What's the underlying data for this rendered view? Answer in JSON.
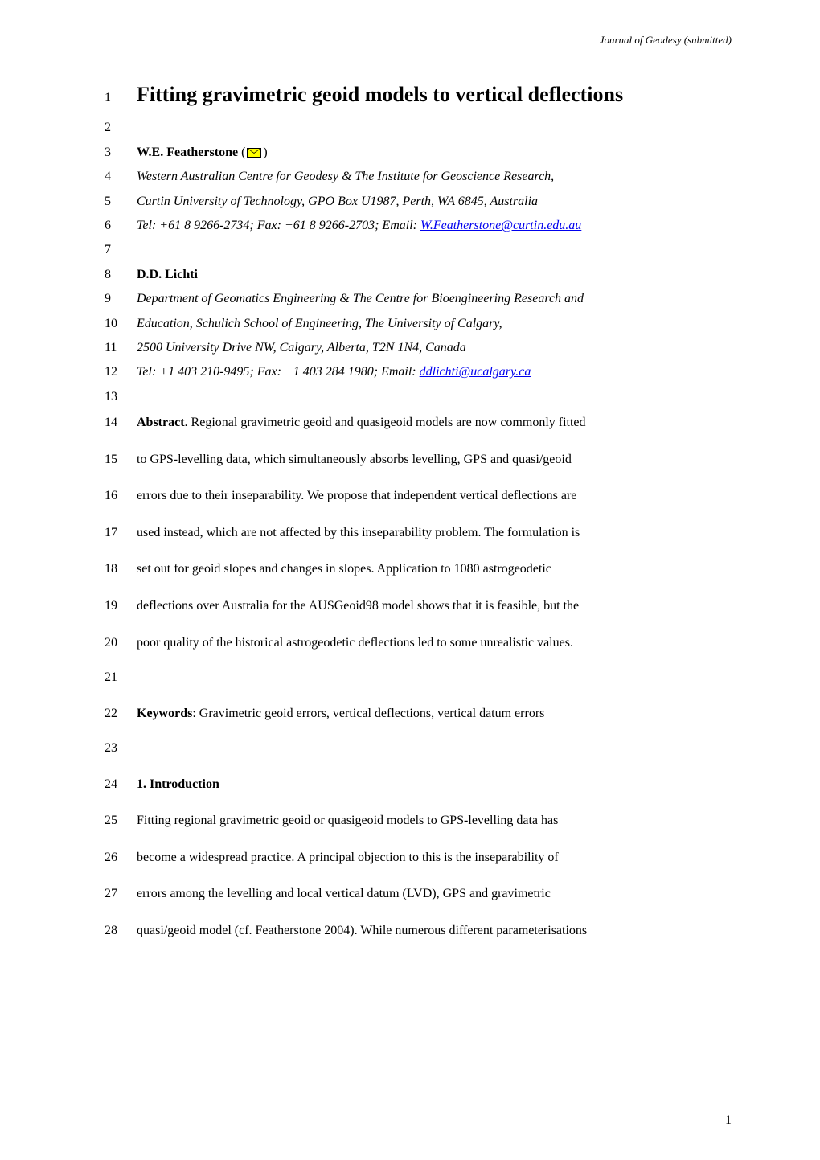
{
  "journal_header": "Journal of Geodesy (submitted)",
  "title": "Fitting gravimetric geoid models to vertical deflections",
  "author1": {
    "name": "W.E. Featherstone",
    "affiliation1": "Western Australian Centre for Geodesy & The Institute for Geoscience Research,",
    "affiliation2": "Curtin University of Technology, GPO Box U1987, Perth, WA 6845, Australia",
    "contact_prefix": "Tel: +61 8 9266-2734; Fax: +61 8 9266-2703; Email: ",
    "email": "W.Featherstone@curtin.edu.au"
  },
  "author2": {
    "name": "D.D. Lichti",
    "affiliation1": "Department of Geomatics Engineering & The Centre for Bioengineering Research and",
    "affiliation2": "Education, Schulich School of Engineering, The University of Calgary,",
    "affiliation3": "2500 University Drive NW, Calgary, Alberta, T2N 1N4, Canada",
    "contact_prefix": "Tel: +1 403 210-9495; Fax: +1 403 284 1980; Email: ",
    "email": "ddlichti@ucalgary.ca"
  },
  "abstract_label": "Abstract",
  "abstract_lines": [
    ".  Regional gravimetric geoid and quasigeoid models are now commonly fitted",
    "to GPS-levelling data, which simultaneously absorbs levelling, GPS and quasi/geoid",
    "errors due to their inseparability.  We propose that independent vertical deflections are",
    "used instead, which are not affected by this inseparability problem.  The formulation is",
    "set out for geoid slopes and changes in slopes.  Application to 1080 astrogeodetic",
    "deflections over Australia for the AUSGeoid98 model shows that it is feasible, but the",
    "poor quality of the historical astrogeodetic deflections led to some unrealistic values."
  ],
  "keywords_label": "Keywords",
  "keywords_text": ": Gravimetric geoid errors, vertical deflections, vertical datum errors",
  "section1_heading": "1. Introduction",
  "intro_lines": [
    "Fitting regional gravimetric geoid or quasigeoid models to GPS-levelling data has",
    "become a widespread practice.  A principal objection to this is the inseparability of",
    "errors among the levelling and local vertical datum (LVD), GPS and gravimetric",
    "quasi/geoid model (cf. Featherstone 2004).  While numerous different parameterisations"
  ],
  "line_numbers": {
    "l1": "1",
    "l2": "2",
    "l3": "3",
    "l4": "4",
    "l5": "5",
    "l6": "6",
    "l7": "7",
    "l8": "8",
    "l9": "9",
    "l10": "10",
    "l11": "11",
    "l12": "12",
    "l13": "13",
    "l14": "14",
    "l15": "15",
    "l16": "16",
    "l17": "17",
    "l18": "18",
    "l19": "19",
    "l20": "20",
    "l21": "21",
    "l22": "22",
    "l23": "23",
    "l24": "24",
    "l25": "25",
    "l26": "26",
    "l27": "27",
    "l28": "28"
  },
  "page_number": "1",
  "colors": {
    "text": "#000000",
    "background": "#ffffff",
    "link": "#0000ee",
    "envelope_fill": "#ffff00"
  },
  "typography": {
    "body_font_size": 16,
    "title_font_size": 26,
    "header_font_size": 13,
    "font_family": "Times New Roman"
  }
}
